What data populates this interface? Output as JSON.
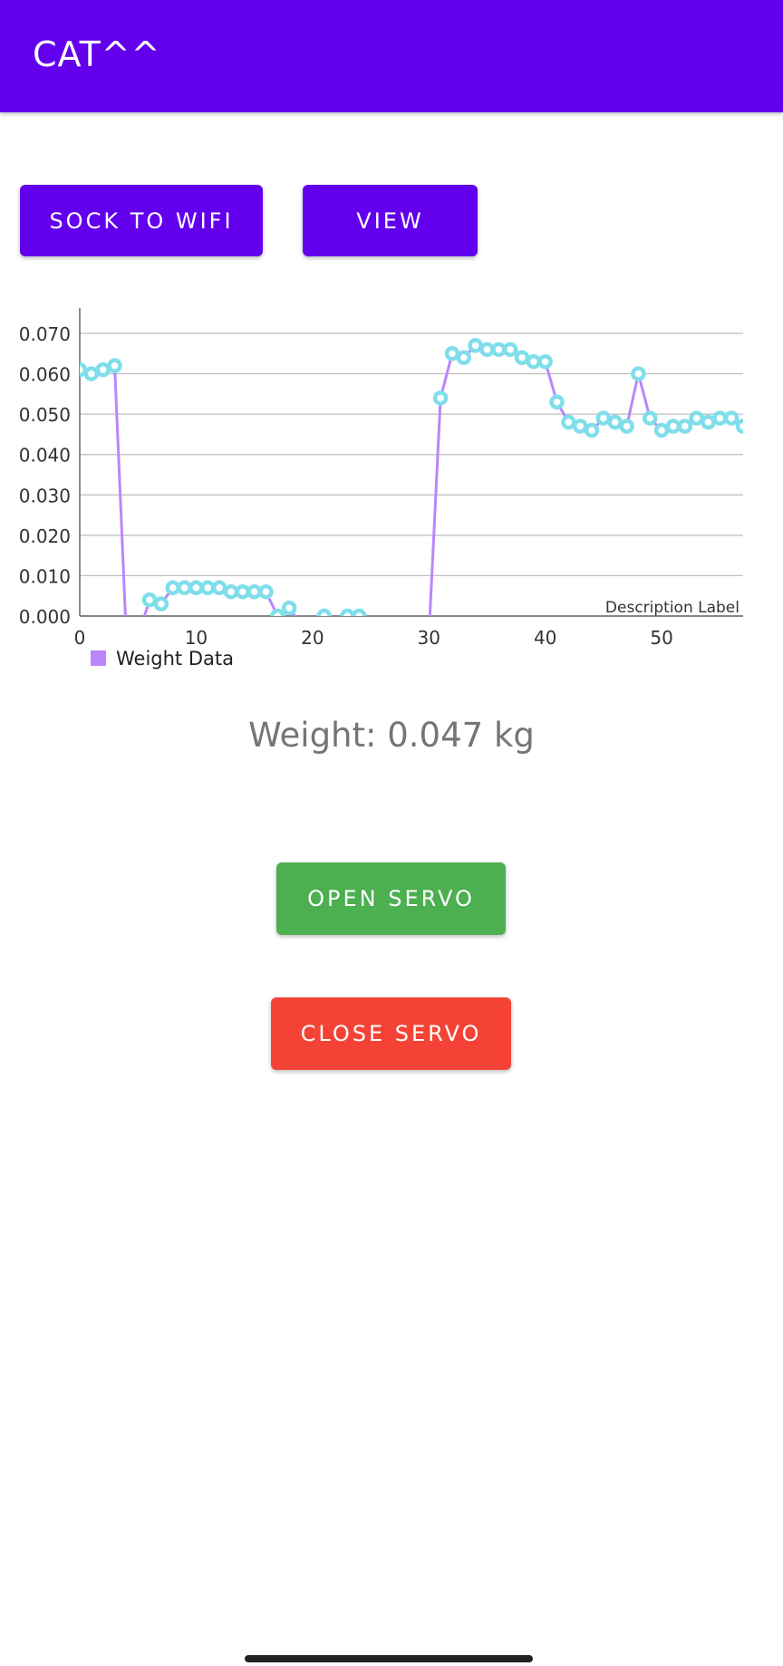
{
  "app_bar": {
    "title": "CAT^^"
  },
  "buttons": {
    "sock_to_wifi": "SOCK TO WIFI",
    "view": "VIEW",
    "open_servo": "OPEN SERVO",
    "close_servo": "CLOSE SERVO"
  },
  "weight": {
    "label": "Weight:",
    "value": "0.047",
    "unit": "kg"
  },
  "colors": {
    "primary": "#6200EE",
    "open_servo": "#4CAF50",
    "close_servo": "#F44336",
    "line": "#BB86FC",
    "point": "#80DEEA"
  },
  "chart_data": {
    "type": "line",
    "title": "",
    "xlabel": "",
    "ylabel": "",
    "description": "Description Label",
    "legend": "bottom-left",
    "grid": true,
    "xlim": [
      0,
      57
    ],
    "ylim": [
      0,
      0.07
    ],
    "x_ticks": [
      "0",
      "10",
      "20",
      "30",
      "40",
      "50"
    ],
    "y_ticks": [
      "0.000",
      "0.010",
      "0.020",
      "0.030",
      "0.040",
      "0.050",
      "0.060",
      "0.070"
    ],
    "series": [
      {
        "name": "Weight Data",
        "x": [
          0,
          1,
          2,
          3,
          4,
          5,
          6,
          7,
          8,
          9,
          10,
          11,
          12,
          13,
          14,
          15,
          16,
          17,
          18,
          19,
          20,
          21,
          22,
          23,
          24,
          25,
          26,
          27,
          28,
          29,
          30,
          31,
          32,
          33,
          34,
          35,
          36,
          37,
          38,
          39,
          40,
          41,
          42,
          43,
          44,
          45,
          46,
          47,
          48,
          49,
          50,
          51,
          52,
          53,
          54,
          55,
          56,
          57
        ],
        "y": [
          0.061,
          0.06,
          0.061,
          0.062,
          -0.005,
          -0.005,
          0.004,
          0.003,
          0.007,
          0.007,
          0.007,
          0.007,
          0.007,
          0.006,
          0.006,
          0.006,
          0.006,
          0.0,
          0.002,
          -0.002,
          -0.002,
          0.0,
          -0.002,
          0.0,
          0.0,
          -0.005,
          -0.005,
          -0.005,
          -0.005,
          -0.005,
          -0.005,
          0.054,
          0.065,
          0.064,
          0.067,
          0.066,
          0.066,
          0.066,
          0.064,
          0.063,
          0.063,
          0.053,
          0.048,
          0.047,
          0.046,
          0.049,
          0.048,
          0.047,
          0.06,
          0.049,
          0.046,
          0.047,
          0.047,
          0.049,
          0.048,
          0.049,
          0.049,
          0.047
        ]
      }
    ]
  }
}
